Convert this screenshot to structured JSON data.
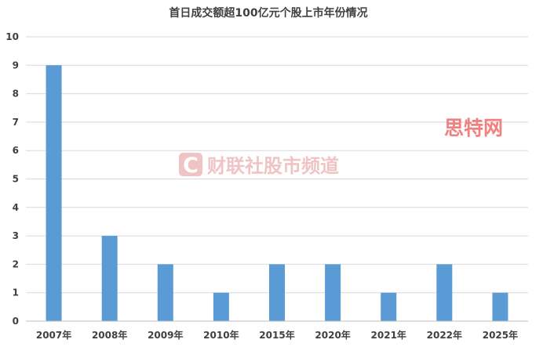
{
  "chart_data": {
    "type": "bar",
    "title": "首日成交额超100亿元个股上市年份情况",
    "categories": [
      "2007年",
      "2008年",
      "2009年",
      "2010年",
      "2015年",
      "2020年",
      "2021年",
      "2022年",
      "2025年"
    ],
    "values": [
      9,
      3,
      2,
      1,
      2,
      2,
      1,
      2,
      1
    ],
    "ylim": [
      0,
      10
    ],
    "yticks": [
      0,
      1,
      2,
      3,
      4,
      5,
      6,
      7,
      8,
      9,
      10
    ],
    "xlabel": "",
    "ylabel": "",
    "grid": true,
    "bar_color": "#5b9bd5"
  },
  "watermarks": {
    "main": "财联社股市频道",
    "main_logo": "C",
    "corner": "思特网"
  },
  "colors": {
    "grid": "#d9d9d9",
    "axis": "#bfbfbf",
    "text": "#404040",
    "watermark": "#f0c4c4",
    "corner_watermark": "#f08080"
  }
}
